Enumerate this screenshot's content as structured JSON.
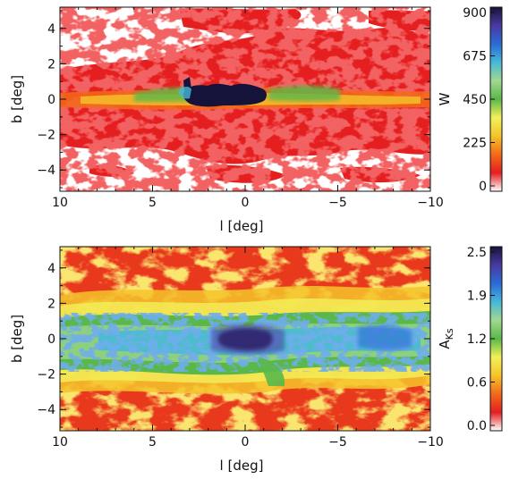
{
  "chart_data": [
    {
      "type": "heatmap",
      "xlabel": "l [deg]",
      "ylabel": "b [deg]",
      "xlim": [
        10,
        -10
      ],
      "ylim": [
        -5.2,
        5.2
      ],
      "x_ticks": [
        10,
        5,
        0,
        -5,
        -10
      ],
      "y_ticks": [
        4,
        2,
        0,
        -2,
        -4
      ],
      "colorbar": {
        "label": "W",
        "ticks": [
          "900",
          "675",
          "450",
          "225",
          "0"
        ],
        "range": [
          0,
          900
        ],
        "colors": [
          "#ffffff",
          "#e51f1f",
          "#f26a1a",
          "#f5c42a",
          "#f2f05a",
          "#5ab84a",
          "#a0d890",
          "#47b8d8",
          "#2a6bd6",
          "#4a3aa0",
          "#16133a"
        ]
      },
      "background": "#ffffff",
      "bulge_color": "#e51f1f",
      "core_color": "#16133a"
    },
    {
      "type": "heatmap",
      "xlabel": "l [deg]",
      "ylabel": "b [deg]",
      "xlim": [
        10,
        -10
      ],
      "ylim": [
        -5.2,
        5.2
      ],
      "x_ticks": [
        10,
        5,
        0,
        -5,
        -10
      ],
      "y_ticks": [
        4,
        2,
        0,
        -2,
        -4
      ],
      "colorbar": {
        "label": "A",
        "label_sub": "Ks",
        "ticks": [
          "2.5",
          "1.9",
          "1.2",
          "0.6",
          "0.0"
        ],
        "range": [
          0,
          2.5
        ],
        "colors": [
          "#ffffff",
          "#e51f1f",
          "#f26a1a",
          "#f5c42a",
          "#f2f05a",
          "#5ab84a",
          "#a0d890",
          "#47b8d8",
          "#2a6bd6",
          "#4a3aa0",
          "#16133a"
        ]
      }
    }
  ]
}
